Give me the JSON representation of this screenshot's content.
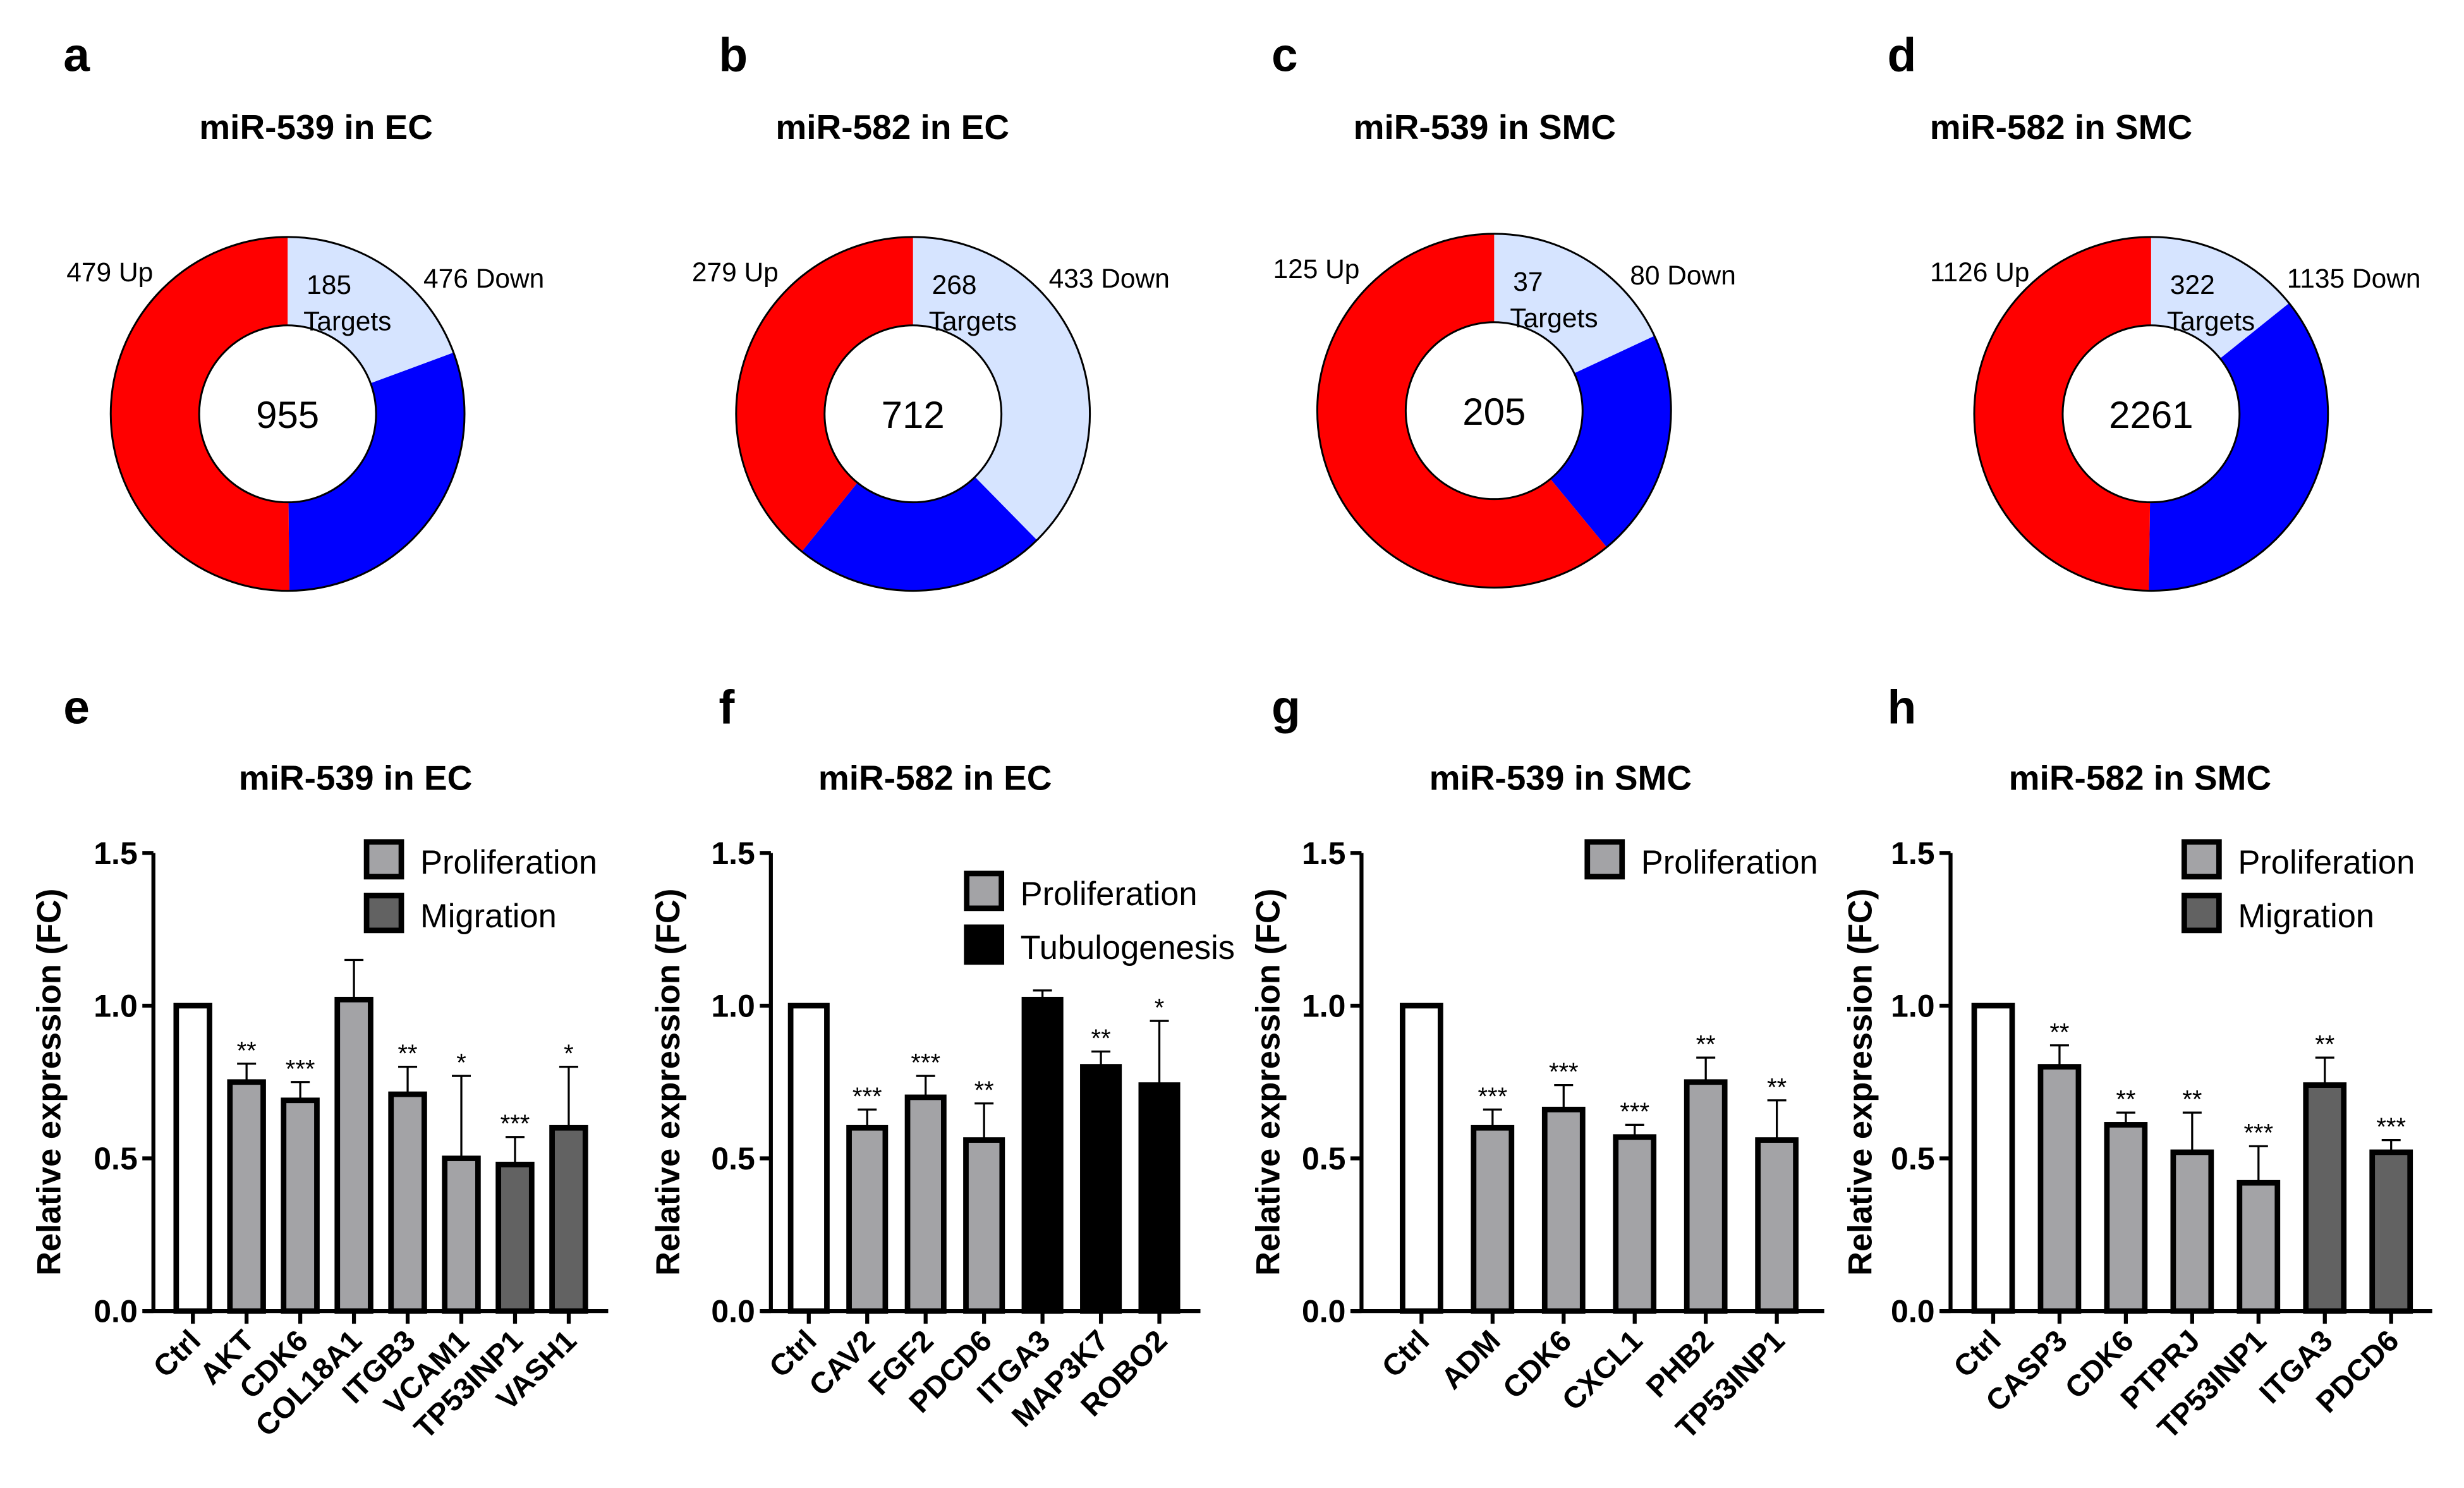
{
  "colors": {
    "up": "#ff0000",
    "down": "#0000ff",
    "targets": "#d6e4ff",
    "ctrl": "#ffffff",
    "proliferation": "#a3a3a6",
    "migration": "#626262",
    "tubulogenesis": "#000000"
  },
  "donuts": [
    {
      "letter": "a",
      "title": "miR-539 in EC",
      "up": 479,
      "down": 476,
      "targets": 185,
      "total": "955",
      "up_label": "479 Up",
      "down_label": "476 Down",
      "targets_n": "185",
      "targets_word": "Targets"
    },
    {
      "letter": "b",
      "title": "miR-582 in EC",
      "up": 279,
      "down": 433,
      "targets": 268,
      "total": "712",
      "up_label": "279 Up",
      "down_label": "433 Down",
      "targets_n": "268",
      "targets_word": "Targets"
    },
    {
      "letter": "c",
      "title": "miR-539 in SMC",
      "up": 125,
      "down": 80,
      "targets": 37,
      "total": "205",
      "up_label": "125 Up",
      "down_label": "80 Down",
      "targets_n": "37",
      "targets_word": "Targets"
    },
    {
      "letter": "d",
      "title": "miR-582 in SMC",
      "up": 1126,
      "down": 1135,
      "targets": 322,
      "total": "2261",
      "up_label": "1126 Up",
      "down_label": "1135 Down",
      "targets_n": "322",
      "targets_word": "Targets"
    }
  ],
  "chart_data": [
    {
      "type": "bar",
      "letter": "e",
      "title": "miR-539 in EC",
      "ylabel": "Relative expression (FC)",
      "ylim": [
        0,
        1.5
      ],
      "yticks": [
        "0.0",
        "0.5",
        "1.0",
        "1.5"
      ],
      "legend": [
        "Proliferation",
        "Migration"
      ],
      "legend_groups": [
        "proliferation",
        "migration"
      ],
      "categories": [
        "Ctrl",
        "AKT",
        "CDK6",
        "COL18A1",
        "ITGB3",
        "VCAM1",
        "TP53INP1",
        "VASH1"
      ],
      "values": [
        1.0,
        0.75,
        0.69,
        1.02,
        0.71,
        0.5,
        0.48,
        0.6
      ],
      "errors": [
        0,
        0.06,
        0.06,
        0.13,
        0.09,
        0.27,
        0.09,
        0.2
      ],
      "groups": [
        "ctrl",
        "proliferation",
        "proliferation",
        "proliferation",
        "proliferation",
        "proliferation",
        "migration",
        "migration"
      ],
      "significance": [
        "",
        "**",
        "***",
        "",
        "**",
        "*",
        "***",
        "*"
      ]
    },
    {
      "type": "bar",
      "letter": "f",
      "title": "miR-582 in EC",
      "ylabel": "Relative expression (FC)",
      "ylim": [
        0,
        1.5
      ],
      "yticks": [
        "0.0",
        "0.5",
        "1.0",
        "1.5"
      ],
      "legend": [
        "Proliferation",
        "Tubulogenesis"
      ],
      "legend_groups": [
        "proliferation",
        "tubulogenesis"
      ],
      "categories": [
        "Ctrl",
        "CAV2",
        "FGF2",
        "PDCD6",
        "ITGA3",
        "MAP3K7",
        "ROBO2"
      ],
      "values": [
        1.0,
        0.6,
        0.7,
        0.56,
        1.02,
        0.8,
        0.74
      ],
      "errors": [
        0,
        0.06,
        0.07,
        0.12,
        0.03,
        0.05,
        0.21
      ],
      "groups": [
        "ctrl",
        "proliferation",
        "proliferation",
        "proliferation",
        "tubulogenesis",
        "tubulogenesis",
        "tubulogenesis"
      ],
      "significance": [
        "",
        "***",
        "***",
        "**",
        "",
        "**",
        "*"
      ]
    },
    {
      "type": "bar",
      "letter": "g",
      "title": "miR-539 in SMC",
      "ylabel": "Relative expression (FC)",
      "ylim": [
        0,
        1.5
      ],
      "yticks": [
        "0.0",
        "0.5",
        "1.0",
        "1.5"
      ],
      "legend": [
        "Proliferation"
      ],
      "legend_groups": [
        "proliferation"
      ],
      "categories": [
        "Ctrl",
        "ADM",
        "CDK6",
        "CXCL1",
        "PHB2",
        "TP53INP1"
      ],
      "values": [
        1.0,
        0.6,
        0.66,
        0.57,
        0.75,
        0.56
      ],
      "errors": [
        0,
        0.06,
        0.08,
        0.04,
        0.08,
        0.13
      ],
      "groups": [
        "ctrl",
        "proliferation",
        "proliferation",
        "proliferation",
        "proliferation",
        "proliferation"
      ],
      "significance": [
        "",
        "***",
        "***",
        "***",
        "**",
        "**"
      ]
    },
    {
      "type": "bar",
      "letter": "h",
      "title": "miR-582 in SMC",
      "ylabel": "Relative expression (FC)",
      "ylim": [
        0,
        1.5
      ],
      "yticks": [
        "0.0",
        "0.5",
        "1.0",
        "1.5"
      ],
      "legend": [
        "Proliferation",
        "Migration"
      ],
      "legend_groups": [
        "proliferation",
        "migration"
      ],
      "categories": [
        "Ctrl",
        "CASP3",
        "CDK6",
        "PTPRJ",
        "TP53INP1",
        "ITGA3",
        "PDCD6"
      ],
      "values": [
        1.0,
        0.8,
        0.61,
        0.52,
        0.42,
        0.74,
        0.52
      ],
      "errors": [
        0,
        0.07,
        0.04,
        0.13,
        0.12,
        0.09,
        0.04
      ],
      "groups": [
        "ctrl",
        "proliferation",
        "proliferation",
        "proliferation",
        "proliferation",
        "migration",
        "migration"
      ],
      "significance": [
        "",
        "**",
        "**",
        "**",
        "***",
        "**",
        "***"
      ]
    }
  ]
}
